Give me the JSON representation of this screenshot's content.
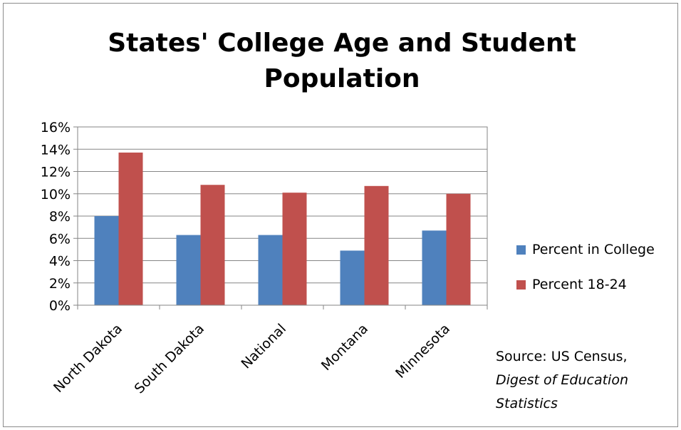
{
  "chart_data": {
    "type": "bar",
    "title_line1": "States' College Age and Student",
    "title_line2": "Population",
    "categories": [
      "North Dakota",
      "South Dakota",
      "National",
      "Montana",
      "Minnesota"
    ],
    "series": [
      {
        "name": "Percent in College",
        "values": [
          8.0,
          6.3,
          6.3,
          4.9,
          6.7
        ],
        "color": "#4f81bd"
      },
      {
        "name": "Percent 18-24",
        "values": [
          13.7,
          10.8,
          10.1,
          10.7,
          10.0
        ],
        "color": "#c0504d"
      }
    ],
    "ylim": [
      0,
      16
    ],
    "y_ticks": [
      0,
      2,
      4,
      6,
      8,
      10,
      12,
      14,
      16
    ],
    "y_tick_labels": [
      "0%",
      "2%",
      "4%",
      "6%",
      "8%",
      "10%",
      "12%",
      "14%",
      "16%"
    ],
    "grid": true,
    "legend_position": "right",
    "source_line1": "Source: US Census,",
    "source_line2": "Digest of Education",
    "source_line3": "Statistics"
  }
}
